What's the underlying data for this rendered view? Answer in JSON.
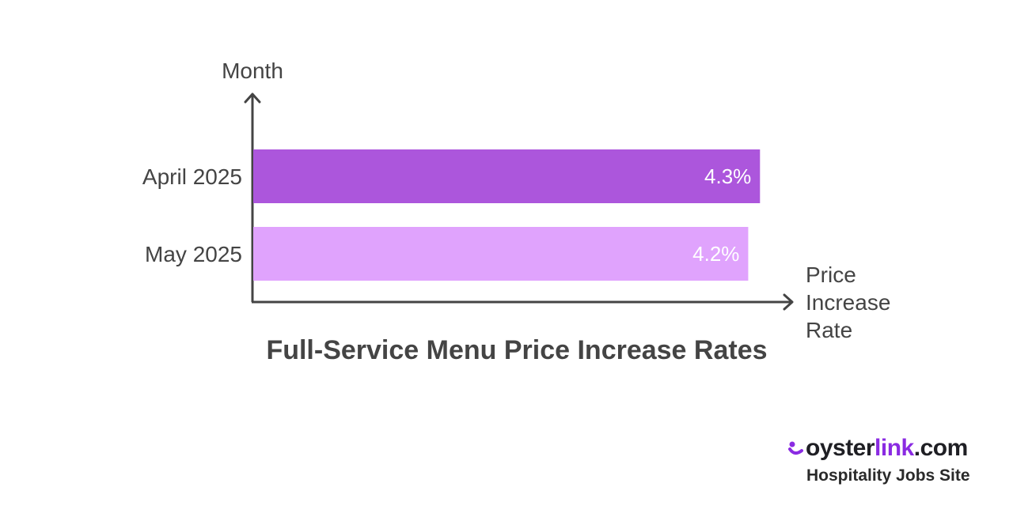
{
  "chart_data": {
    "type": "bar",
    "orientation": "horizontal",
    "title": "Full-Service Menu Price Increase Rates",
    "ylabel": "Month",
    "xlabel": "Price Increase Rate",
    "categories": [
      "April 2025",
      "May 2025"
    ],
    "values": [
      4.3,
      4.2
    ],
    "value_labels": [
      "4.3%",
      "4.2%"
    ],
    "bar_colors": [
      "#ac56dc",
      "#e0a3fd"
    ],
    "xlim": [
      0,
      4.58
    ],
    "grid": false,
    "legend": "none"
  },
  "brand": {
    "name_part1": "oyster",
    "name_part2": "link",
    "name_part3": ".com",
    "tagline": "Hospitality Jobs Site",
    "accent_color": "#8a2be2",
    "icon": "oyster-logo-icon"
  }
}
